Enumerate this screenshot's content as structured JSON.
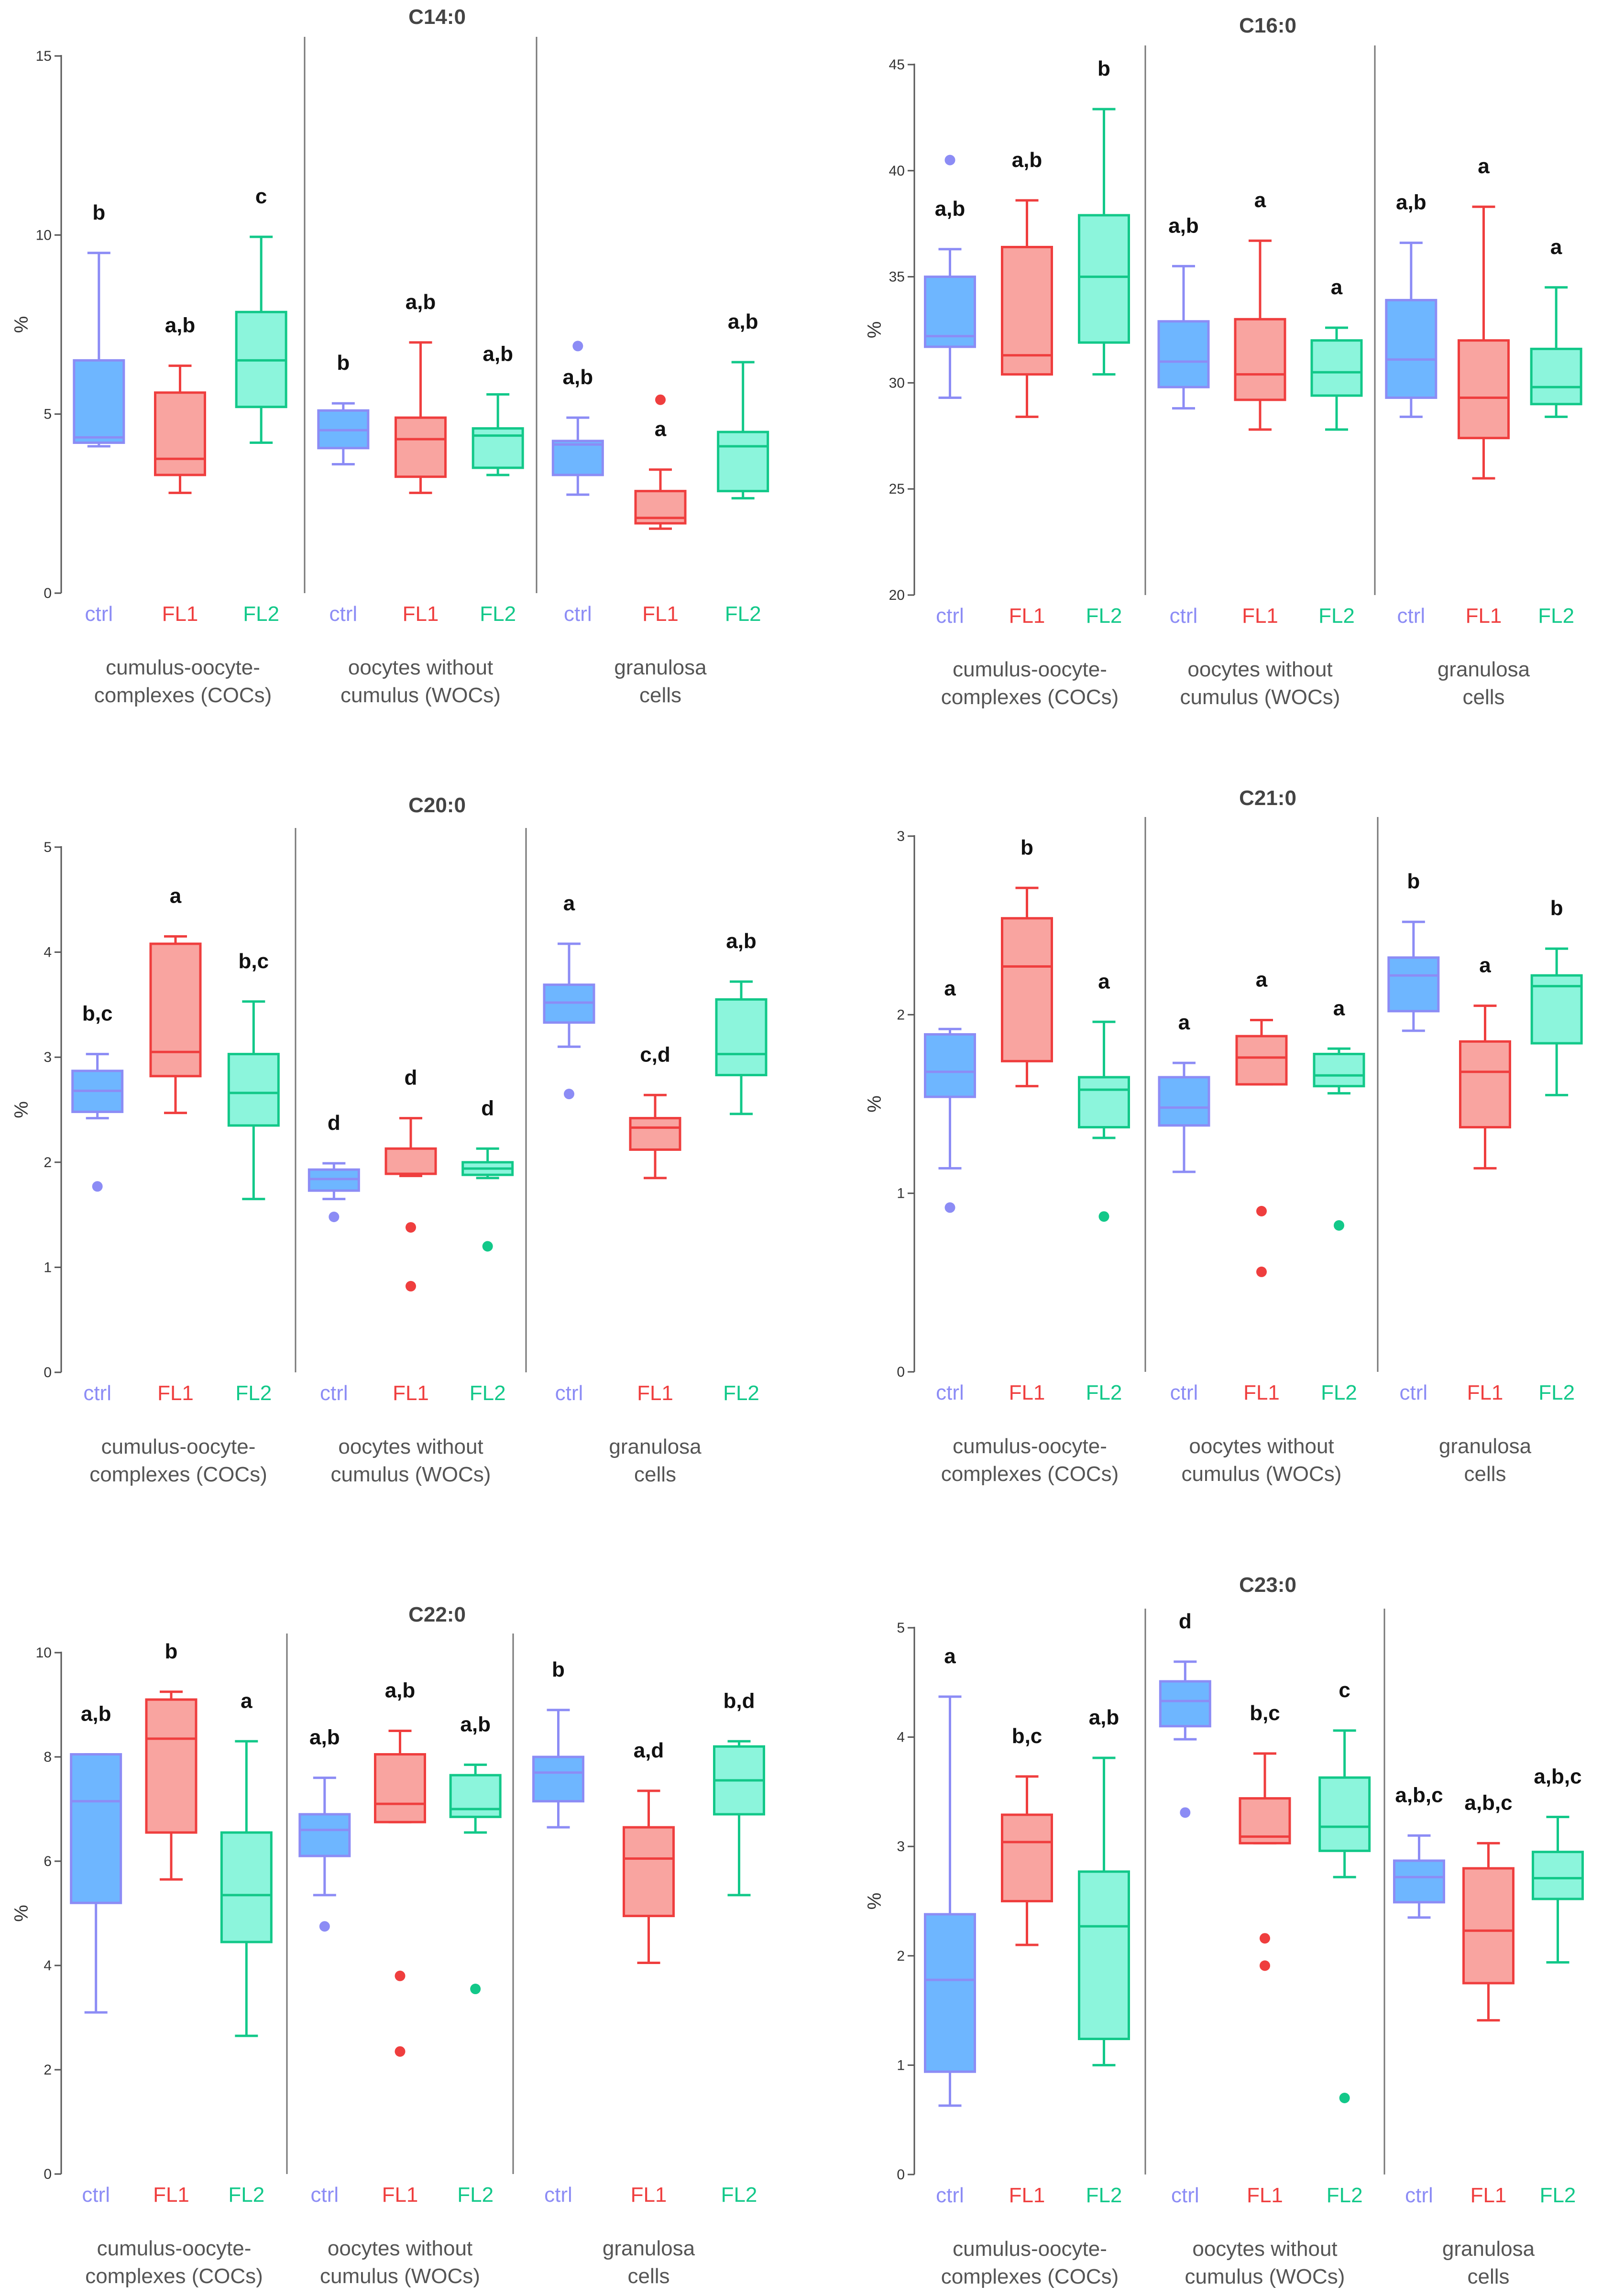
{
  "colors": {
    "ctrl": {
      "stroke": "#8c8cf5",
      "fill": "#6eb6ff"
    },
    "FL1": {
      "stroke": "#ef3e3e",
      "fill": "#f9a4a0"
    },
    "FL2": {
      "stroke": "#12c889",
      "fill": "#8cf5dc"
    },
    "axis": "#555555",
    "separator": "#777777"
  },
  "chart_data": [
    {
      "type": "box",
      "title": "C14:0",
      "ylabel": "%",
      "ylim": [
        0,
        15
      ],
      "yticks": [
        0,
        5,
        10,
        15
      ],
      "categories": [
        "ctrl",
        "FL1",
        "FL2"
      ],
      "groups": [
        "cumulus-oocyte-\ncomplexes (COCs)",
        "oocytes without\ncumulus (WOCs)",
        "granulosa\ncells"
      ],
      "boxes": [
        {
          "min": 4.1,
          "q1": 4.2,
          "median": 4.35,
          "q3": 6.5,
          "max": 9.5,
          "outliers": [],
          "label": "b"
        },
        {
          "min": 2.8,
          "q1": 3.3,
          "median": 3.75,
          "q3": 5.6,
          "max": 6.35,
          "outliers": [],
          "label": "a,b"
        },
        {
          "min": 4.2,
          "q1": 5.2,
          "median": 6.5,
          "q3": 7.85,
          "max": 9.95,
          "outliers": [],
          "label": "c"
        },
        {
          "min": 3.6,
          "q1": 4.05,
          "median": 4.55,
          "q3": 5.1,
          "max": 5.3,
          "outliers": [],
          "label": "b"
        },
        {
          "min": 2.8,
          "q1": 3.25,
          "median": 4.3,
          "q3": 4.9,
          "max": 7.0,
          "outliers": [],
          "label": "a,b"
        },
        {
          "min": 3.3,
          "q1": 3.5,
          "median": 4.4,
          "q3": 4.6,
          "max": 5.55,
          "outliers": [],
          "label": "a,b"
        },
        {
          "min": 2.75,
          "q1": 3.3,
          "median": 4.15,
          "q3": 4.25,
          "max": 4.9,
          "outliers": [
            6.9
          ],
          "label": "a,b"
        },
        {
          "min": 1.8,
          "q1": 1.95,
          "median": 2.1,
          "q3": 2.85,
          "max": 3.45,
          "outliers": [
            5.4
          ],
          "label": "a"
        },
        {
          "min": 2.65,
          "q1": 2.85,
          "median": 4.1,
          "q3": 4.5,
          "max": 6.45,
          "outliers": [],
          "label": "a,b"
        }
      ]
    },
    {
      "type": "box",
      "title": "C16:0",
      "ylabel": "%",
      "ylim": [
        20,
        45
      ],
      "yticks": [
        20,
        25,
        30,
        35,
        40,
        45
      ],
      "categories": [
        "ctrl",
        "FL1",
        "FL2"
      ],
      "groups": [
        "cumulus-oocyte-\ncomplexes (COCs)",
        "oocytes without\ncumulus (WOCs)",
        "granulosa\ncells"
      ],
      "boxes": [
        {
          "min": 29.3,
          "q1": 31.7,
          "median": 32.2,
          "q3": 35.0,
          "max": 36.3,
          "outliers": [
            40.5
          ],
          "label": "a,b"
        },
        {
          "min": 28.4,
          "q1": 30.4,
          "median": 31.3,
          "q3": 36.4,
          "max": 38.6,
          "outliers": [],
          "label": "a,b"
        },
        {
          "min": 30.4,
          "q1": 31.9,
          "median": 35.0,
          "q3": 37.9,
          "max": 42.9,
          "outliers": [],
          "label": "b"
        },
        {
          "min": 28.8,
          "q1": 29.8,
          "median": 31.0,
          "q3": 32.9,
          "max": 35.5,
          "outliers": [],
          "label": "a,b"
        },
        {
          "min": 27.8,
          "q1": 29.2,
          "median": 30.4,
          "q3": 33.0,
          "max": 36.7,
          "outliers": [],
          "label": "a"
        },
        {
          "min": 27.8,
          "q1": 29.4,
          "median": 30.5,
          "q3": 32.0,
          "max": 32.6,
          "outliers": [],
          "label": "a"
        },
        {
          "min": 28.4,
          "q1": 29.3,
          "median": 31.1,
          "q3": 33.9,
          "max": 36.6,
          "outliers": [],
          "label": "a,b"
        },
        {
          "min": 25.5,
          "q1": 27.4,
          "median": 29.3,
          "q3": 32.0,
          "max": 38.3,
          "outliers": [],
          "label": "a"
        },
        {
          "min": 28.4,
          "q1": 29.0,
          "median": 29.8,
          "q3": 31.6,
          "max": 34.5,
          "outliers": [],
          "label": "a"
        }
      ]
    },
    {
      "type": "box",
      "title": "C20:0",
      "ylabel": "%",
      "ylim": [
        0,
        5
      ],
      "yticks": [
        0,
        1,
        2,
        3,
        4,
        5
      ],
      "categories": [
        "ctrl",
        "FL1",
        "FL2"
      ],
      "groups": [
        "cumulus-oocyte-\ncomplexes (COCs)",
        "oocytes without\ncumulus (WOCs)",
        "granulosa\ncells"
      ],
      "boxes": [
        {
          "min": 2.42,
          "q1": 2.48,
          "median": 2.68,
          "q3": 2.87,
          "max": 3.03,
          "outliers": [
            1.77
          ],
          "label": "b,c"
        },
        {
          "min": 2.47,
          "q1": 2.82,
          "median": 3.05,
          "q3": 4.08,
          "max": 4.15,
          "outliers": [],
          "label": "a"
        },
        {
          "min": 1.65,
          "q1": 2.35,
          "median": 2.66,
          "q3": 3.03,
          "max": 3.53,
          "outliers": [],
          "label": "b,c"
        },
        {
          "min": 1.65,
          "q1": 1.73,
          "median": 1.84,
          "q3": 1.93,
          "max": 1.99,
          "outliers": [
            1.48
          ],
          "label": "d"
        },
        {
          "min": 1.87,
          "q1": 1.89,
          "median": 1.89,
          "q3": 2.13,
          "max": 2.42,
          "outliers": [
            1.38,
            0.82
          ],
          "label": "d"
        },
        {
          "min": 1.85,
          "q1": 1.88,
          "median": 1.94,
          "q3": 2.0,
          "max": 2.13,
          "outliers": [
            1.2
          ],
          "label": "d"
        },
        {
          "min": 3.1,
          "q1": 3.33,
          "median": 3.52,
          "q3": 3.69,
          "max": 4.08,
          "outliers": [
            2.65
          ],
          "label": "a"
        },
        {
          "min": 1.85,
          "q1": 2.12,
          "median": 2.33,
          "q3": 2.42,
          "max": 2.64,
          "outliers": [],
          "label": "c,d"
        },
        {
          "min": 2.46,
          "q1": 2.83,
          "median": 3.03,
          "q3": 3.55,
          "max": 3.72,
          "outliers": [],
          "label": "a,b"
        }
      ]
    },
    {
      "type": "box",
      "title": "C21:0",
      "ylabel": "%",
      "ylim": [
        0,
        3
      ],
      "yticks": [
        0,
        1,
        2,
        3
      ],
      "categories": [
        "ctrl",
        "FL1",
        "FL2"
      ],
      "groups": [
        "cumulus-oocyte-\ncomplexes (COCs)",
        "oocytes without\ncumulus (WOCs)",
        "granulosa\ncells"
      ],
      "boxes": [
        {
          "min": 1.14,
          "q1": 1.54,
          "median": 1.68,
          "q3": 1.89,
          "max": 1.92,
          "outliers": [
            0.92
          ],
          "label": "a"
        },
        {
          "min": 1.6,
          "q1": 1.74,
          "median": 2.27,
          "q3": 2.54,
          "max": 2.71,
          "outliers": [],
          "label": "b"
        },
        {
          "min": 1.31,
          "q1": 1.37,
          "median": 1.58,
          "q3": 1.65,
          "max": 1.96,
          "outliers": [
            0.87
          ],
          "label": "a"
        },
        {
          "min": 1.12,
          "q1": 1.38,
          "median": 1.48,
          "q3": 1.65,
          "max": 1.73,
          "outliers": [],
          "label": "a"
        },
        {
          "min": 1.61,
          "q1": 1.61,
          "median": 1.76,
          "q3": 1.88,
          "max": 1.97,
          "outliers": [
            0.9,
            0.56
          ],
          "label": "a"
        },
        {
          "min": 1.56,
          "q1": 1.6,
          "median": 1.66,
          "q3": 1.78,
          "max": 1.81,
          "outliers": [
            0.82
          ],
          "label": "a"
        },
        {
          "min": 1.91,
          "q1": 2.02,
          "median": 2.22,
          "q3": 2.32,
          "max": 2.52,
          "outliers": [],
          "label": "b"
        },
        {
          "min": 1.14,
          "q1": 1.37,
          "median": 1.68,
          "q3": 1.85,
          "max": 2.05,
          "outliers": [],
          "label": "a"
        },
        {
          "min": 1.55,
          "q1": 1.84,
          "median": 2.16,
          "q3": 2.22,
          "max": 2.37,
          "outliers": [],
          "label": "b"
        }
      ]
    },
    {
      "type": "box",
      "title": "C22:0",
      "ylabel": "%",
      "ylim": [
        0,
        10
      ],
      "yticks": [
        0,
        2,
        4,
        6,
        8,
        10
      ],
      "categories": [
        "ctrl",
        "FL1",
        "FL2"
      ],
      "groups": [
        "cumulus-oocyte-\ncomplexes (COCs)",
        "oocytes without\ncumulus (WOCs)",
        "granulosa\ncells"
      ],
      "boxes": [
        {
          "min": 3.1,
          "q1": 5.2,
          "median": 7.15,
          "q3": 8.05,
          "max": 8.05,
          "outliers": [],
          "label": "a,b"
        },
        {
          "min": 5.65,
          "q1": 6.55,
          "median": 8.35,
          "q3": 9.1,
          "max": 9.25,
          "outliers": [],
          "label": "b"
        },
        {
          "min": 2.65,
          "q1": 4.45,
          "median": 5.35,
          "q3": 6.55,
          "max": 8.3,
          "outliers": [],
          "label": "a"
        },
        {
          "min": 5.35,
          "q1": 6.1,
          "median": 6.6,
          "q3": 6.9,
          "max": 7.6,
          "outliers": [
            4.75
          ],
          "label": "a,b"
        },
        {
          "min": 6.75,
          "q1": 6.75,
          "median": 7.1,
          "q3": 8.05,
          "max": 8.5,
          "outliers": [
            3.8,
            2.35
          ],
          "label": "a,b"
        },
        {
          "min": 6.55,
          "q1": 6.85,
          "median": 7.0,
          "q3": 7.65,
          "max": 7.85,
          "outliers": [
            3.55
          ],
          "label": "a,b"
        },
        {
          "min": 6.65,
          "q1": 7.15,
          "median": 7.7,
          "q3": 8.0,
          "max": 8.9,
          "outliers": [],
          "label": "b"
        },
        {
          "min": 4.05,
          "q1": 4.95,
          "median": 6.05,
          "q3": 6.65,
          "max": 7.35,
          "outliers": [],
          "label": "a,d"
        },
        {
          "min": 5.35,
          "q1": 6.9,
          "median": 7.55,
          "q3": 8.2,
          "max": 8.3,
          "outliers": [],
          "label": "b,d"
        }
      ]
    },
    {
      "type": "box",
      "title": "C23:0",
      "ylabel": "%",
      "ylim": [
        0,
        5
      ],
      "yticks": [
        0,
        1,
        2,
        3,
        4,
        5
      ],
      "categories": [
        "ctrl",
        "FL1",
        "FL2"
      ],
      "groups": [
        "cumulus-oocyte-\ncomplexes (COCs)",
        "oocytes without\ncumulus (WOCs)",
        "granulosa\ncells"
      ],
      "boxes": [
        {
          "min": 0.63,
          "q1": 0.94,
          "median": 1.78,
          "q3": 2.38,
          "max": 4.37,
          "outliers": [],
          "label": "a"
        },
        {
          "min": 2.1,
          "q1": 2.5,
          "median": 3.04,
          "q3": 3.29,
          "max": 3.64,
          "outliers": [],
          "label": "b,c"
        },
        {
          "min": 1.0,
          "q1": 1.24,
          "median": 2.27,
          "q3": 2.77,
          "max": 3.81,
          "outliers": [],
          "label": "a,b"
        },
        {
          "min": 3.98,
          "q1": 4.1,
          "median": 4.33,
          "q3": 4.51,
          "max": 4.69,
          "outliers": [
            3.31
          ],
          "label": "d"
        },
        {
          "min": 3.03,
          "q1": 3.03,
          "median": 3.09,
          "q3": 3.44,
          "max": 3.85,
          "outliers": [
            2.16,
            1.91
          ],
          "label": "b,c"
        },
        {
          "min": 2.72,
          "q1": 2.96,
          "median": 3.18,
          "q3": 3.63,
          "max": 4.06,
          "outliers": [
            0.7
          ],
          "label": "c"
        },
        {
          "min": 2.35,
          "q1": 2.49,
          "median": 2.72,
          "q3": 2.87,
          "max": 3.1,
          "outliers": [],
          "label": "a,b,c"
        },
        {
          "min": 1.41,
          "q1": 1.75,
          "median": 2.23,
          "q3": 2.8,
          "max": 3.03,
          "outliers": [],
          "label": "a,b,c"
        },
        {
          "min": 1.94,
          "q1": 2.52,
          "median": 2.71,
          "q3": 2.95,
          "max": 3.27,
          "outliers": [],
          "label": "a,b,c"
        }
      ]
    }
  ]
}
